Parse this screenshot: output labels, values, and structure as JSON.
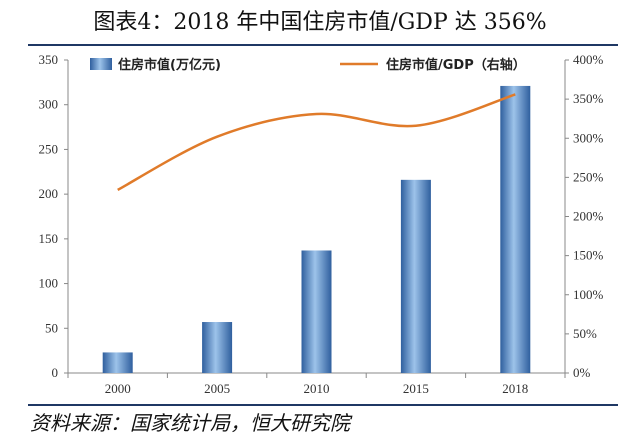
{
  "title": "图表4：2018 年中国住房市值/GDP 达 356%",
  "source": "资料来源：国家统计局，恒大研究院",
  "chart_data": {
    "type": "bar",
    "categories": [
      "2000",
      "2005",
      "2010",
      "2015",
      "2018"
    ],
    "series": [
      {
        "name": "住房市值(万亿元)",
        "type": "bar",
        "axis": "left",
        "values": [
          23,
          57,
          137,
          216,
          321
        ]
      },
      {
        "name": "住房市值/GDP（右轴）",
        "type": "line",
        "axis": "right",
        "values": [
          234,
          302,
          331,
          316,
          356
        ]
      }
    ],
    "left_axis": {
      "ylim": [
        0,
        350
      ],
      "ticks": [
        "0",
        "50",
        "100",
        "150",
        "200",
        "250",
        "300",
        "350"
      ]
    },
    "right_axis": {
      "ylim": [
        0,
        400
      ],
      "ticks": [
        "0%",
        "50%",
        "100%",
        "150%",
        "200%",
        "250%",
        "300%",
        "350%",
        "400%"
      ]
    },
    "legend_position": "top",
    "grid": false,
    "colors": {
      "bar": "#4f81bd",
      "line": "#e07b2a"
    }
  }
}
